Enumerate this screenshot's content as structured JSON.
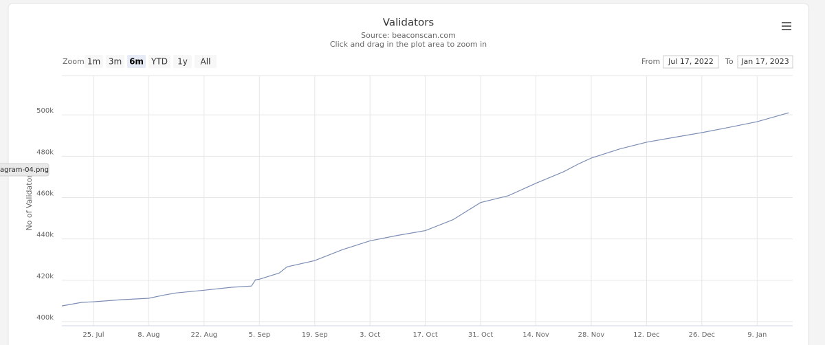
{
  "chart_data": {
    "type": "line",
    "title": "Validators",
    "subtitle": "Source: beaconscan.com",
    "caption": "Click and drag in the plot area to zoom in",
    "y_label": "No of Validators",
    "color": "#7b8db5",
    "grid": true,
    "x": [
      "2022-07-17",
      "2022-07-22",
      "2022-07-25",
      "2022-08-01",
      "2022-08-08",
      "2022-08-12",
      "2022-08-15",
      "2022-08-22",
      "2022-08-29",
      "2022-09-03",
      "2022-09-04",
      "2022-09-05",
      "2022-09-10",
      "2022-09-12",
      "2022-09-19",
      "2022-09-26",
      "2022-10-03",
      "2022-10-10",
      "2022-10-17",
      "2022-10-24",
      "2022-10-31",
      "2022-11-07",
      "2022-11-14",
      "2022-11-21",
      "2022-11-25",
      "2022-11-28",
      "2022-12-05",
      "2022-12-12",
      "2022-12-19",
      "2022-12-26",
      "2023-01-02",
      "2023-01-09",
      "2023-01-17"
    ],
    "values": [
      407600,
      409300,
      409600,
      410600,
      411300,
      412900,
      413900,
      415200,
      416600,
      417200,
      420200,
      420500,
      423500,
      426500,
      429500,
      434800,
      439100,
      441700,
      444000,
      449300,
      457600,
      460900,
      466900,
      472500,
      476500,
      479100,
      483400,
      486800,
      489100,
      491400,
      494000,
      496700,
      501000
    ],
    "xlim": [
      "2022-07-17",
      "2023-01-18"
    ],
    "xticks": [
      {
        "value": "2022-07-25",
        "label": "25. Jul"
      },
      {
        "value": "2022-08-08",
        "label": "8. Aug"
      },
      {
        "value": "2022-08-22",
        "label": "22. Aug"
      },
      {
        "value": "2022-09-05",
        "label": "5. Sep"
      },
      {
        "value": "2022-09-19",
        "label": "19. Sep"
      },
      {
        "value": "2022-10-03",
        "label": "3. Oct"
      },
      {
        "value": "2022-10-17",
        "label": "17. Oct"
      },
      {
        "value": "2022-10-31",
        "label": "31. Oct"
      },
      {
        "value": "2022-11-14",
        "label": "14. Nov"
      },
      {
        "value": "2022-11-28",
        "label": "28. Nov"
      },
      {
        "value": "2022-12-12",
        "label": "12. Dec"
      },
      {
        "value": "2022-12-26",
        "label": "26. Dec"
      },
      {
        "value": "2023-01-09",
        "label": "9. Jan"
      }
    ],
    "ylim": [
      398000,
      519000
    ],
    "yticks": [
      {
        "value": 400000,
        "label": "400k"
      },
      {
        "value": 420000,
        "label": "420k"
      },
      {
        "value": 440000,
        "label": "440k"
      },
      {
        "value": 460000,
        "label": "460k"
      },
      {
        "value": 480000,
        "label": "480k"
      },
      {
        "value": 500000,
        "label": "500k"
      }
    ]
  },
  "range_selector": {
    "label": "Zoom",
    "buttons": [
      "1m",
      "3m",
      "6m",
      "YTD",
      "1y",
      "All"
    ],
    "selected": 2
  },
  "date_inputs": {
    "from_label": "From",
    "from": "Jul 17, 2022",
    "to_label": "To",
    "to": "Jan 17, 2023"
  },
  "tooltip": "agram-04.png"
}
